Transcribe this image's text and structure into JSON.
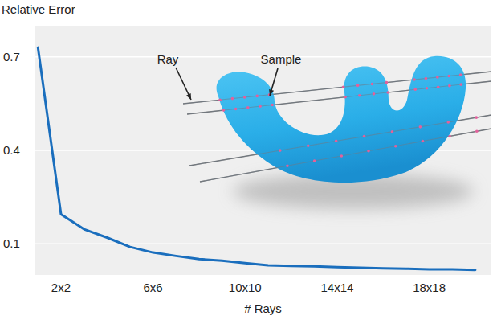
{
  "chart_data": {
    "type": "line",
    "y_label": "Relative Error",
    "x_label": "# Rays",
    "annotations": [
      "Ray",
      "Sample"
    ],
    "x": [
      1,
      2,
      3,
      4,
      5,
      6,
      7,
      8,
      9,
      10,
      11,
      12,
      13,
      14,
      15,
      16,
      17,
      18,
      19,
      20
    ],
    "series": [
      {
        "name": "Relative Error",
        "color": "#1a6ebd",
        "values": [
          0.73,
          0.195,
          0.147,
          0.12,
          0.09,
          0.072,
          0.061,
          0.051,
          0.046,
          0.038,
          0.031,
          0.029,
          0.028,
          0.025,
          0.023,
          0.021,
          0.02,
          0.018,
          0.018,
          0.016
        ]
      }
    ],
    "xlim": [
      0.85,
      20.7
    ],
    "xticks": [
      {
        "value": 2,
        "label": "2x2"
      },
      {
        "value": 6,
        "label": "6x6"
      },
      {
        "value": 10,
        "label": "10x10"
      },
      {
        "value": 14,
        "label": "14x14"
      },
      {
        "value": 18,
        "label": "18x18"
      }
    ],
    "ylim": [
      0,
      0.8
    ],
    "yticks": [
      0.1,
      0.4,
      0.7
    ],
    "grid": true
  }
}
